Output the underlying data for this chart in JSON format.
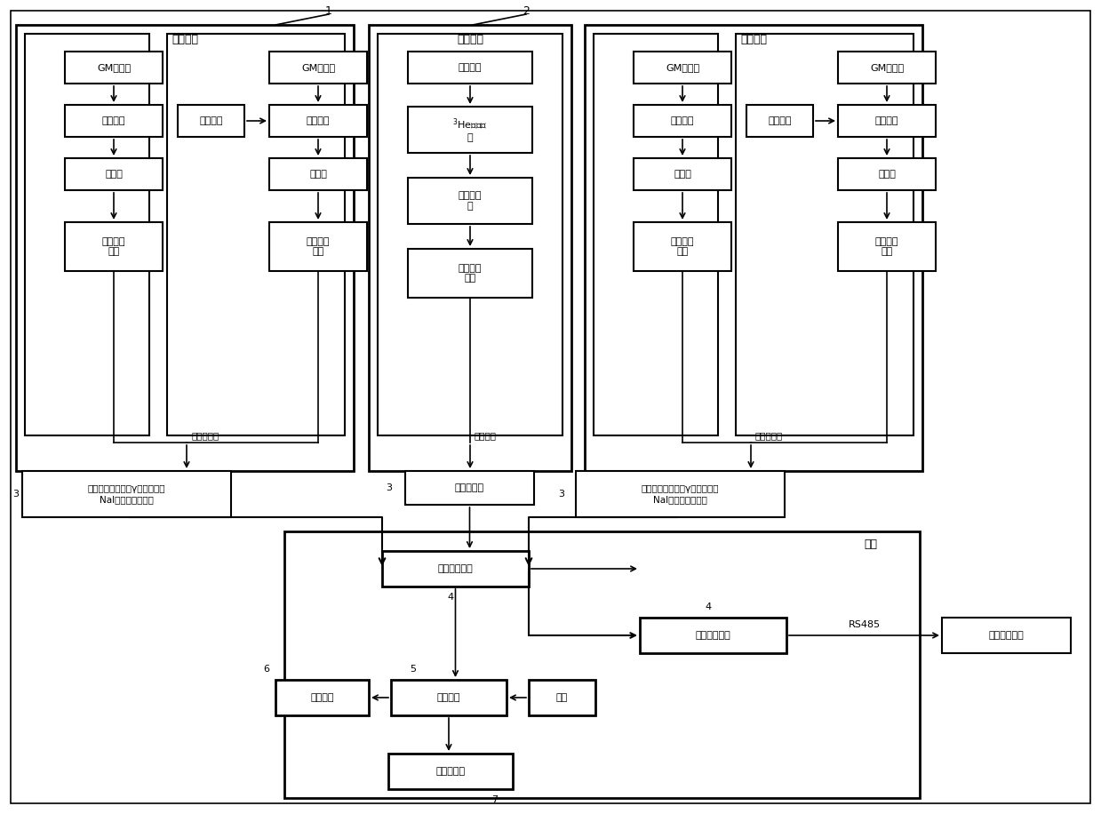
{
  "gamma_probe_label": "伽马探头",
  "neutron_probe_label": "中子探头",
  "host_label": "主机",
  "gm_detector": "GM探测器",
  "amplifier_circuit": "放大电路",
  "amplifier": "放大器",
  "discriminator": "鉴别整型\n电路",
  "hv_power": "高压电源",
  "neutron_moderator": "中子慢化",
  "he3_detector": "$^{3}$He中子探\n头",
  "preamp": "前置放大\n器",
  "neutron_discriminator": "鉴别整型\n电路",
  "pulse_output_gamma": "脉冲输出／",
  "pulse_output_neutron": "脉冲输出",
  "signal_processor_gamma": "信号处理器（判别γ剂量串选取\nNaI或半导体信号）",
  "signal_processor_neutron": "信号处理器",
  "probe_comm": "探头通讯电路",
  "microprocessor": "微处理器",
  "display": "显示电路",
  "keyboard": "键盘",
  "alarm": "声光报警器",
  "control_software": "控制系统软件",
  "rs485": "RS485",
  "ref1": "1",
  "ref2": "2",
  "ref3": "3",
  "ref4": "4",
  "ref5": "5",
  "ref6": "6",
  "ref7": "7"
}
